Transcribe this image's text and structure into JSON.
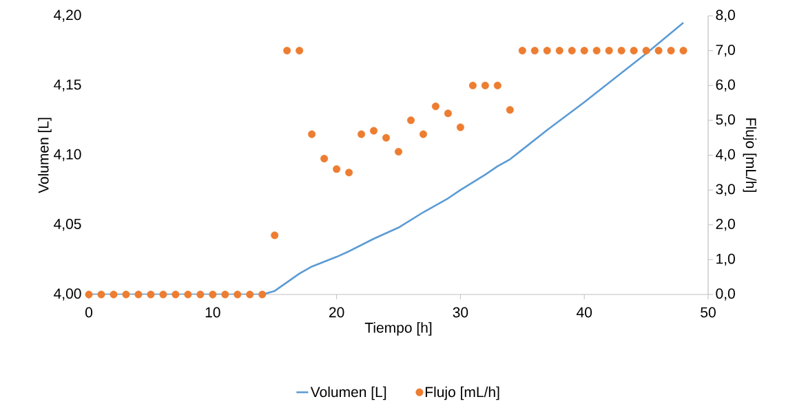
{
  "chart_data": {
    "type": "line",
    "xlabel": "Tiempo [h]",
    "ylabel": "Volumen [L]",
    "y2label": "Flujo [mL/h]",
    "xlim": [
      0,
      50
    ],
    "xticks": [
      0,
      10,
      20,
      30,
      40,
      50
    ],
    "ylim": [
      4.0,
      4.2
    ],
    "yticks": [
      {
        "value": 4.0,
        "label": "4,00"
      },
      {
        "value": 4.05,
        "label": "4,05"
      },
      {
        "value": 4.1,
        "label": "4,10"
      },
      {
        "value": 4.15,
        "label": "4,15"
      },
      {
        "value": 4.2,
        "label": "4,20"
      }
    ],
    "y2lim": [
      0,
      8
    ],
    "y2ticks": [
      {
        "value": 0,
        "label": "0,0"
      },
      {
        "value": 1,
        "label": "1,0"
      },
      {
        "value": 2,
        "label": "2,0"
      },
      {
        "value": 3,
        "label": "3,0"
      },
      {
        "value": 4,
        "label": "4,0"
      },
      {
        "value": 5,
        "label": "5,0"
      },
      {
        "value": 6,
        "label": "6,0"
      },
      {
        "value": 7,
        "label": "7,0"
      },
      {
        "value": 8,
        "label": "8,0"
      }
    ],
    "legend": "bottom",
    "grid": false,
    "series": [
      {
        "name": "Volumen [L]",
        "color": "#5b9bd5",
        "marker": "none",
        "x": [
          0,
          14,
          15,
          17,
          18,
          20,
          21,
          23,
          25,
          27,
          29,
          30,
          32,
          33,
          34,
          35,
          37,
          40,
          43,
          45,
          48
        ],
        "values": [
          4.0,
          4.0,
          4.0025,
          4.015,
          4.02,
          4.027,
          4.031,
          4.04,
          4.048,
          4.059,
          4.069,
          4.075,
          4.086,
          4.092,
          4.097,
          4.104,
          4.118,
          4.138,
          4.159,
          4.173,
          4.195
        ]
      },
      {
        "name": "Flujo [mL/h]",
        "type": "scatter",
        "axis": "y2",
        "color": "#ed7d31",
        "marker": "circle",
        "x": [
          0,
          1,
          2,
          3,
          4,
          5,
          6,
          7,
          8,
          9,
          10,
          11,
          12,
          13,
          14,
          15,
          16,
          17,
          18,
          19,
          20,
          21,
          22,
          23,
          24,
          25,
          26,
          27,
          28,
          29,
          30,
          31,
          32,
          33,
          34,
          35,
          36,
          37,
          38,
          39,
          40,
          41,
          42,
          43,
          44,
          45,
          46,
          47,
          48
        ],
        "values": [
          0,
          0,
          0,
          0,
          0,
          0,
          0,
          0,
          0,
          0,
          0,
          0,
          0,
          0,
          0,
          1.7,
          7.0,
          7.0,
          4.6,
          3.9,
          3.6,
          3.5,
          4.6,
          4.7,
          4.5,
          4.1,
          5.0,
          4.6,
          5.4,
          5.2,
          4.8,
          6.0,
          6.0,
          6.0,
          5.3,
          7.0,
          7.0,
          7.0,
          7.0,
          7.0,
          7.0,
          7.0,
          7.0,
          7.0,
          7.0,
          7.0,
          7.0,
          7.0,
          7.0
        ]
      }
    ]
  }
}
